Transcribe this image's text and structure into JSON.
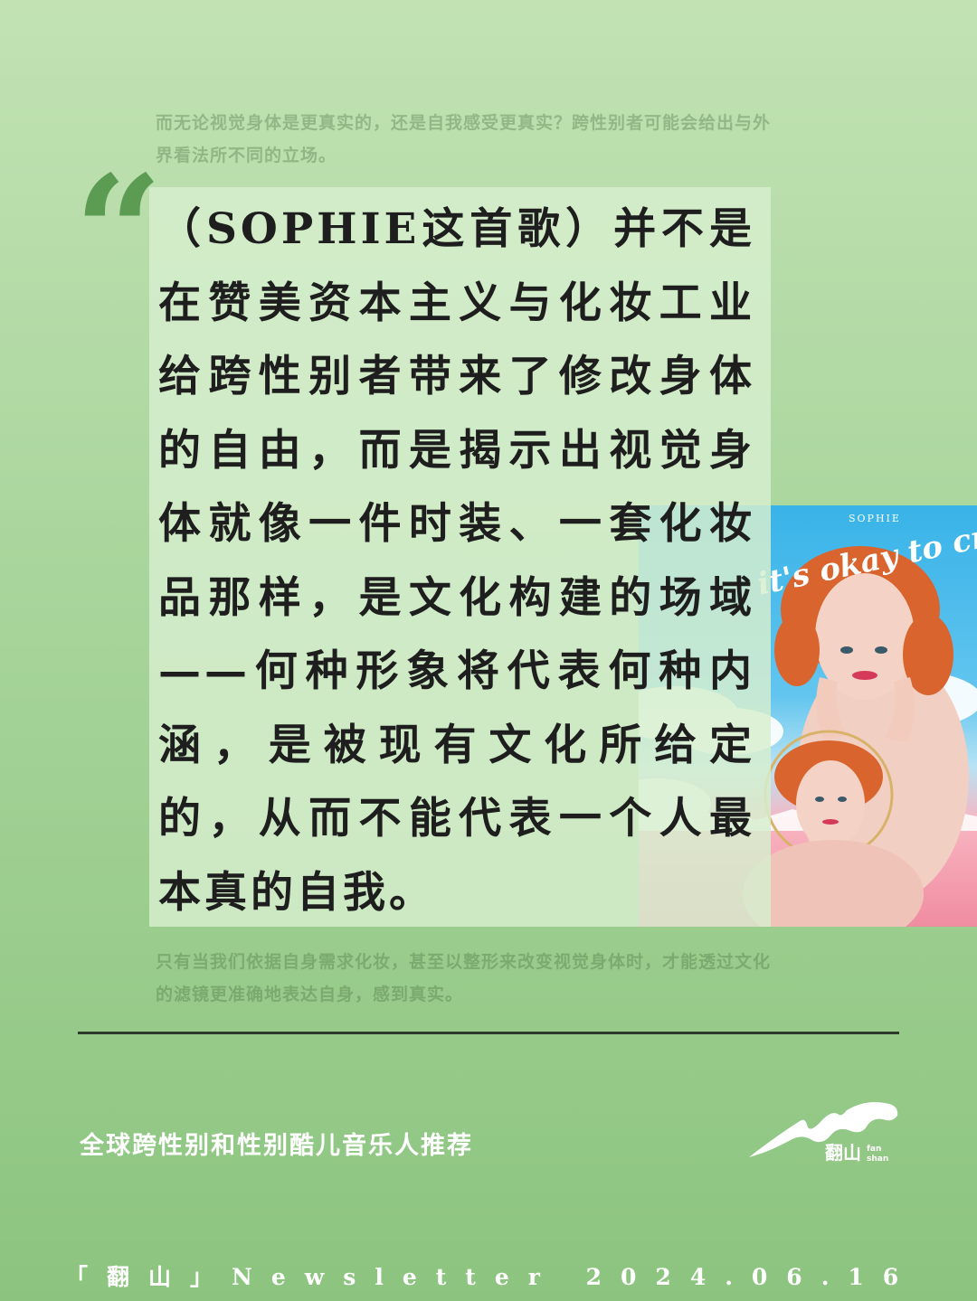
{
  "ghost_text": {
    "top": "而无论视觉身体是更真实的，还是自我感受更真实？跨性别者可能会给出与外界看法所不同的立场。",
    "bottom": "只有当我们依据自身需求化妆，甚至以整形来改变视觉身体时，才能透过文化的滤镜更准确地表达自身，感到真实。"
  },
  "quote": {
    "mark": "“",
    "text": "（SOPHIE这首歌）并不是在赞美资本主义与化妆工业给跨性别者带来了修改身体的自由，而是揭示出视觉身体就像一件时装、一套化妆品那样，是文化构建的场域——何种形象将代表何种内涵，是被现有文化所给定的，从而不能代表一个人最本真的自我。"
  },
  "album": {
    "artist": "SOPHIE",
    "title": "it's okay to cry"
  },
  "series_title": "全球跨性别和性别酷儿音乐人推荐",
  "logo": {
    "text": "翻山",
    "text_en_1": "fan",
    "text_en_2": "shan"
  },
  "footer": "「翻山」Newsletter 2024.06.16",
  "colors": {
    "background_top": "#c2e2b4",
    "background_bottom": "#8cc47f",
    "quote_mark": "#5c9c52",
    "quote_box": "#d7eece",
    "text": "#1e1e1e"
  }
}
